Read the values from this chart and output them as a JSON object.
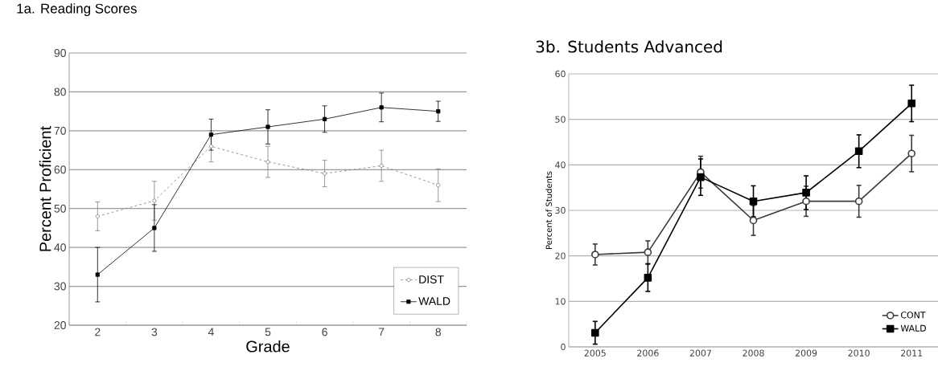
{
  "chart_data": [
    {
      "type": "line",
      "title": "1a.  Reading Scores",
      "xlabel": "Grade",
      "ylabel": "Percent Proficient",
      "categories": [
        "2",
        "3",
        "4",
        "5",
        "6",
        "7",
        "8"
      ],
      "ylim": [
        20,
        90
      ],
      "yticks": [
        20,
        30,
        40,
        50,
        60,
        70,
        80,
        90
      ],
      "grid": "y",
      "legend": "bottom right",
      "series": [
        {
          "name": "DIST",
          "color": "#808080",
          "marker": "circle",
          "line_style": "dashed",
          "values": [
            48,
            52,
            66,
            62,
            59,
            61,
            56
          ],
          "errors": [
            3.7,
            5,
            4,
            4,
            3.4,
            4,
            4.2
          ]
        },
        {
          "name": "WALD",
          "color": "#000000",
          "marker": "square",
          "line_style": "solid",
          "values": [
            33,
            45,
            69,
            71,
            73,
            76,
            75
          ],
          "errors": [
            7,
            6,
            4,
            4.4,
            3.4,
            3.7,
            2.6
          ]
        }
      ]
    },
    {
      "type": "line",
      "title": "3b. Students Advanced",
      "ylabel": "Percent of Students",
      "categories": [
        "2005",
        "2006",
        "2007",
        "2008",
        "2009",
        "2010",
        "2011"
      ],
      "ylim": [
        0,
        60
      ],
      "yticks": [
        0,
        10,
        20,
        30,
        40,
        50,
        60
      ],
      "grid": "y",
      "legend": "bottom right",
      "series": [
        {
          "name": "CONT",
          "color": "#3a3a3a",
          "marker": "circle",
          "line_style": "solid",
          "values": [
            20.3,
            20.8,
            38.4,
            27.8,
            32,
            32,
            42.5
          ],
          "errors": [
            2.3,
            2.5,
            3.5,
            3.3,
            3.3,
            3.5,
            4
          ]
        },
        {
          "name": "WALD",
          "color": "#000000",
          "marker": "square",
          "line_style": "solid",
          "values": [
            3.1,
            15.2,
            37.3,
            32,
            33.9,
            43,
            53.5
          ],
          "errors": [
            2.5,
            3,
            4,
            3.4,
            3.7,
            3.6,
            4
          ]
        }
      ]
    }
  ]
}
